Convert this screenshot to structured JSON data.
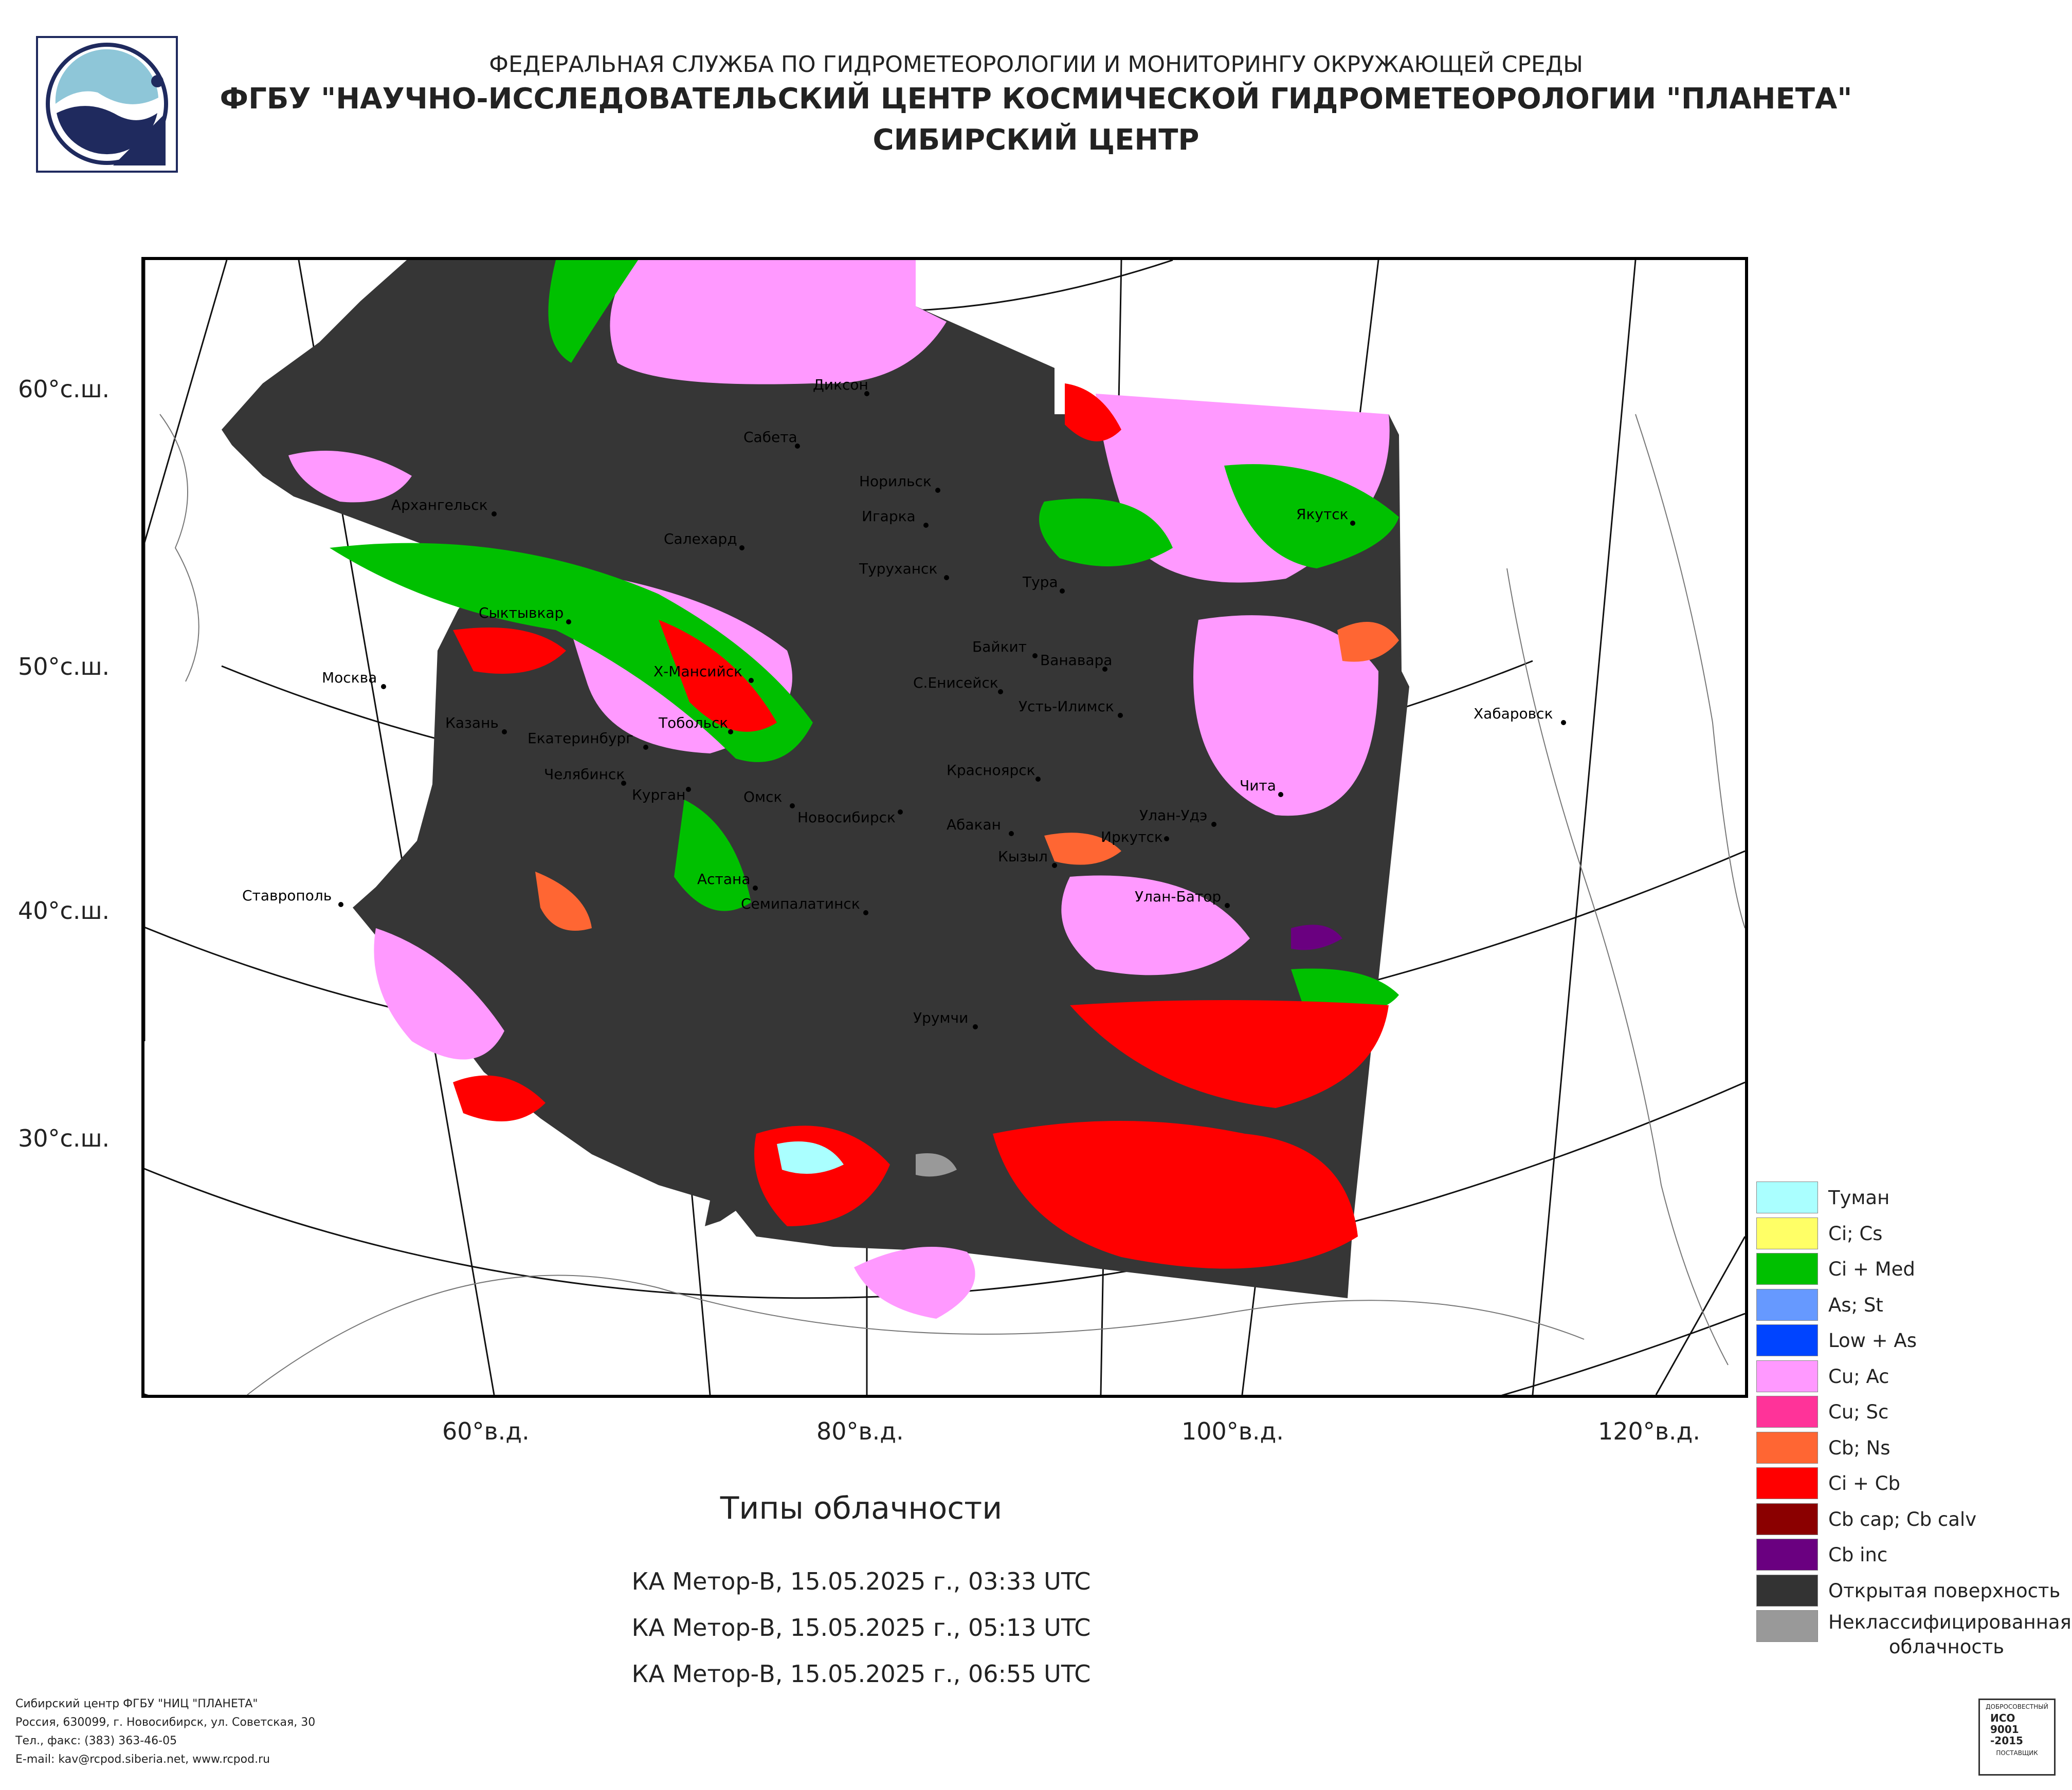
{
  "header": {
    "agency": "ФЕДЕРАЛЬНАЯ СЛУЖБА ПО ГИДРОМЕТЕОРОЛОГИИ И МОНИТОРИНГУ ОКРУЖАЮЩЕЙ СРЕДЫ",
    "org": "ФГБУ \"НАУЧНО-ИССЛЕДОВАТЕЛЬСКИЙ ЦЕНТР КОСМИЧЕСКОЙ ГИДРОМЕТЕОРОЛОГИИ \"ПЛАНЕТА\"",
    "center": "СИБИРСКИЙ ЦЕНТР"
  },
  "map": {
    "lat_labels": [
      "60°с.ш.",
      "50°с.ш.",
      "40°с.ш.",
      "30°с.ш."
    ],
    "lon_labels": [
      "60°в.д.",
      "80°в.д.",
      "100°в.д.",
      "120°в.д."
    ],
    "cities": [
      {
        "name": "Диксон"
      },
      {
        "name": "Сабета"
      },
      {
        "name": "Норильск"
      },
      {
        "name": "Игарка"
      },
      {
        "name": "Архангельск"
      },
      {
        "name": "Салехард"
      },
      {
        "name": "Туруханск"
      },
      {
        "name": "Тура"
      },
      {
        "name": "Якутск"
      },
      {
        "name": "Сыктывкар"
      },
      {
        "name": "Байкит"
      },
      {
        "name": "Ванавара"
      },
      {
        "name": "Москва"
      },
      {
        "name": "Х-Мансийск"
      },
      {
        "name": "С.Енисейск"
      },
      {
        "name": "Усть-Илимск"
      },
      {
        "name": "Казань"
      },
      {
        "name": "Тобольск"
      },
      {
        "name": "Хабаровск"
      },
      {
        "name": "Екатеринбург"
      },
      {
        "name": "Красноярск"
      },
      {
        "name": "Челябинск"
      },
      {
        "name": "Курган"
      },
      {
        "name": "Омск"
      },
      {
        "name": "Новосибирск"
      },
      {
        "name": "Чита"
      },
      {
        "name": "Улан-Удэ"
      },
      {
        "name": "Абакан"
      },
      {
        "name": "Иркутск"
      },
      {
        "name": "Кызыл"
      },
      {
        "name": "Астана"
      },
      {
        "name": "Ставрополь"
      },
      {
        "name": "Семипалатинск"
      },
      {
        "name": "Улан-Батор"
      },
      {
        "name": "Урумчи"
      }
    ]
  },
  "product": {
    "title": "Типы облачности",
    "passes": [
      "КА Метор-В, 15.05.2025 г., 03:33 UTC",
      "КА Метор-В, 15.05.2025 г., 05:13 UTC",
      "КА Метор-В, 15.05.2025 г., 06:55 UTC"
    ]
  },
  "legend": [
    {
      "label": "Туман",
      "color": "#aaffff"
    },
    {
      "label": "Ci; Cs",
      "color": "#ffff66"
    },
    {
      "label": "Ci + Med",
      "color": "#00c000"
    },
    {
      "label": "As; St",
      "color": "#6699ff"
    },
    {
      "label": "Low + As",
      "color": "#0044ff"
    },
    {
      "label": "Cu; Ac",
      "color": "#ff99ff"
    },
    {
      "label": "Cu; Sc",
      "color": "#ff3399"
    },
    {
      "label": "Cb; Ns",
      "color": "#ff6633"
    },
    {
      "label": "Ci + Cb",
      "color": "#ff0000"
    },
    {
      "label": "Cb cap; Cb calv",
      "color": "#8b0000"
    },
    {
      "label": "Cb inc",
      "color": "#6a0080"
    },
    {
      "label": "Открытая поверхность",
      "color": "#333333"
    },
    {
      "label": "Неклассифицированная облачность",
      "color": "#999999"
    }
  ],
  "footer": {
    "line1": "Сибирский центр ФГБУ \"НИЦ \"ПЛАНЕТА\"",
    "line2": "Россия, 630099, г. Новосибирск, ул. Советская, 30",
    "line3": "Тел., факс: (383) 363-46-05",
    "line4": "E-mail: kav@rcpod.siberia.net, www.rcpod.ru"
  },
  "iso_badge": {
    "top": "ДОБРОСОВЕСТНЫЙ",
    "l1": "ИСО",
    "l2": "9001",
    "l3": "-2015",
    "bottom": "ПОСТАВЩИК"
  }
}
